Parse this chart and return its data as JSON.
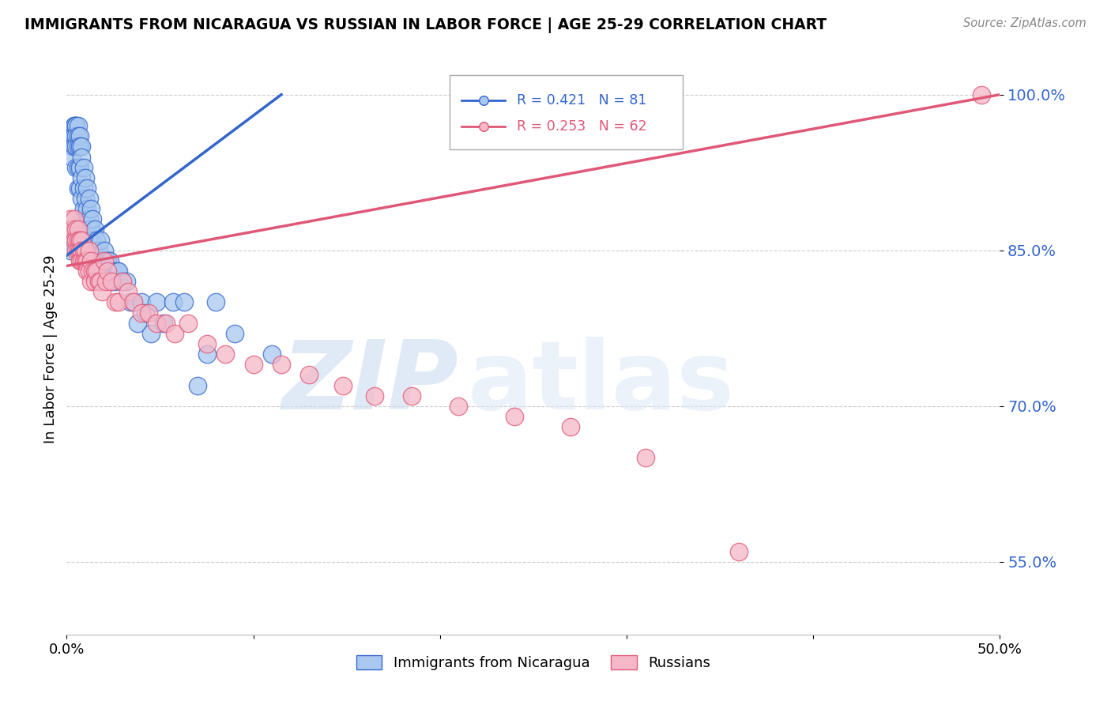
{
  "title": "IMMIGRANTS FROM NICARAGUA VS RUSSIAN IN LABOR FORCE | AGE 25-29 CORRELATION CHART",
  "source": "Source: ZipAtlas.com",
  "ylabel": "In Labor Force | Age 25-29",
  "xlim": [
    0.0,
    0.5
  ],
  "ylim": [
    0.48,
    1.03
  ],
  "yticks": [
    0.55,
    0.7,
    0.85,
    1.0
  ],
  "ytick_labels": [
    "55.0%",
    "70.0%",
    "85.0%",
    "100.0%"
  ],
  "xticks": [
    0.0,
    0.1,
    0.2,
    0.3,
    0.4,
    0.5
  ],
  "xtick_labels": [
    "0.0%",
    "",
    "",
    "",
    "",
    "50.0%"
  ],
  "legend_blue_r": "R = 0.421",
  "legend_blue_n": "N = 81",
  "legend_pink_r": "R = 0.253",
  "legend_pink_n": "N = 62",
  "blue_color": "#A8C8F0",
  "pink_color": "#F5B8C8",
  "trendline_blue": "#3366CC",
  "trendline_pink": "#E05878",
  "blue_x": [
    0.001,
    0.002,
    0.002,
    0.003,
    0.003,
    0.003,
    0.004,
    0.004,
    0.004,
    0.004,
    0.005,
    0.005,
    0.005,
    0.005,
    0.005,
    0.006,
    0.006,
    0.006,
    0.006,
    0.006,
    0.007,
    0.007,
    0.007,
    0.007,
    0.008,
    0.008,
    0.008,
    0.008,
    0.008,
    0.009,
    0.009,
    0.009,
    0.01,
    0.01,
    0.01,
    0.01,
    0.011,
    0.011,
    0.011,
    0.012,
    0.012,
    0.012,
    0.013,
    0.013,
    0.014,
    0.014,
    0.015,
    0.015,
    0.016,
    0.016,
    0.017,
    0.017,
    0.018,
    0.018,
    0.019,
    0.02,
    0.021,
    0.022,
    0.023,
    0.024,
    0.025,
    0.026,
    0.027,
    0.028,
    0.03,
    0.032,
    0.034,
    0.036,
    0.038,
    0.04,
    0.042,
    0.045,
    0.048,
    0.052,
    0.057,
    0.063,
    0.07,
    0.075,
    0.08,
    0.09,
    0.11
  ],
  "blue_y": [
    0.86,
    0.87,
    0.85,
    0.96,
    0.95,
    0.94,
    0.97,
    0.97,
    0.96,
    0.95,
    0.97,
    0.97,
    0.96,
    0.95,
    0.93,
    0.97,
    0.96,
    0.95,
    0.93,
    0.91,
    0.96,
    0.95,
    0.93,
    0.91,
    0.95,
    0.94,
    0.92,
    0.9,
    0.88,
    0.93,
    0.91,
    0.89,
    0.92,
    0.9,
    0.88,
    0.86,
    0.91,
    0.89,
    0.87,
    0.9,
    0.88,
    0.86,
    0.89,
    0.87,
    0.88,
    0.86,
    0.87,
    0.85,
    0.86,
    0.84,
    0.85,
    0.83,
    0.86,
    0.84,
    0.84,
    0.85,
    0.83,
    0.84,
    0.84,
    0.82,
    0.83,
    0.82,
    0.83,
    0.83,
    0.82,
    0.82,
    0.8,
    0.8,
    0.78,
    0.8,
    0.79,
    0.77,
    0.8,
    0.78,
    0.8,
    0.8,
    0.72,
    0.75,
    0.8,
    0.77,
    0.75
  ],
  "pink_x": [
    0.002,
    0.003,
    0.004,
    0.004,
    0.005,
    0.005,
    0.005,
    0.006,
    0.006,
    0.006,
    0.007,
    0.007,
    0.007,
    0.008,
    0.008,
    0.008,
    0.009,
    0.009,
    0.01,
    0.01,
    0.011,
    0.011,
    0.012,
    0.012,
    0.013,
    0.013,
    0.014,
    0.015,
    0.015,
    0.016,
    0.017,
    0.018,
    0.019,
    0.02,
    0.021,
    0.022,
    0.024,
    0.026,
    0.028,
    0.03,
    0.033,
    0.036,
    0.04,
    0.044,
    0.048,
    0.053,
    0.058,
    0.065,
    0.075,
    0.085,
    0.1,
    0.115,
    0.13,
    0.148,
    0.165,
    0.185,
    0.21,
    0.24,
    0.27,
    0.31,
    0.36,
    0.49
  ],
  "pink_y": [
    0.88,
    0.87,
    0.88,
    0.86,
    0.87,
    0.86,
    0.85,
    0.87,
    0.86,
    0.85,
    0.86,
    0.85,
    0.84,
    0.86,
    0.85,
    0.84,
    0.85,
    0.84,
    0.85,
    0.84,
    0.84,
    0.83,
    0.85,
    0.83,
    0.84,
    0.82,
    0.83,
    0.83,
    0.82,
    0.83,
    0.82,
    0.82,
    0.81,
    0.84,
    0.82,
    0.83,
    0.82,
    0.8,
    0.8,
    0.82,
    0.81,
    0.8,
    0.79,
    0.79,
    0.78,
    0.78,
    0.77,
    0.78,
    0.76,
    0.75,
    0.74,
    0.74,
    0.73,
    0.72,
    0.71,
    0.71,
    0.7,
    0.69,
    0.68,
    0.65,
    0.56,
    1.0
  ]
}
